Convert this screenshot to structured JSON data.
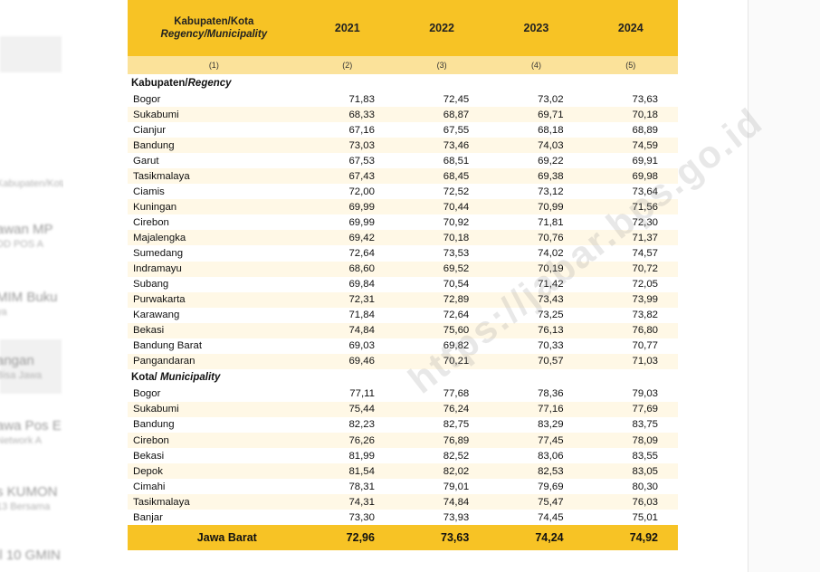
{
  "background_page": {
    "items": [
      {
        "line1": "",
        "line2": "Kabupaten/Kota"
      },
      {
        "line1": "awan MP",
        "line2": "DD POS A"
      },
      {
        "line1": "MIM Buku",
        "line2": "ya"
      },
      {
        "line1": "angan",
        "line2": "Bisa Jawa"
      },
      {
        "line1": "awa Pos E",
        "line2": "Network A"
      },
      {
        "line1": "s KUMON",
        "line2": "13 Bersama"
      },
      {
        "line1": "il 10 GMIN",
        "line2": ""
      }
    ]
  },
  "table": {
    "header": {
      "label_id": "Kabupaten/Kota",
      "label_en": "Regency/Municipality",
      "years": [
        "2021",
        "2022",
        "2023",
        "2024"
      ],
      "col_numbers": [
        "(1)",
        "(2)",
        "(3)",
        "(4)",
        "(5)"
      ]
    },
    "sections": [
      {
        "title_id": "Kabupaten/",
        "title_en": "Regency",
        "rows": [
          {
            "name": "Bogor",
            "values": [
              "71,83",
              "72,45",
              "73,02",
              "73,63"
            ]
          },
          {
            "name": "Sukabumi",
            "values": [
              "68,33",
              "68,87",
              "69,71",
              "70,18"
            ]
          },
          {
            "name": "Cianjur",
            "values": [
              "67,16",
              "67,55",
              "68,18",
              "68,89"
            ]
          },
          {
            "name": "Bandung",
            "values": [
              "73,03",
              "73,46",
              "74,03",
              "74,59"
            ]
          },
          {
            "name": "Garut",
            "values": [
              "67,53",
              "68,51",
              "69,22",
              "69,91"
            ]
          },
          {
            "name": "Tasikmalaya",
            "values": [
              "67,43",
              "68,45",
              "69,38",
              "69,98"
            ]
          },
          {
            "name": "Ciamis",
            "values": [
              "72,00",
              "72,52",
              "73,12",
              "73,64"
            ]
          },
          {
            "name": "Kuningan",
            "values": [
              "69,99",
              "70,44",
              "70,99",
              "71,56"
            ]
          },
          {
            "name": "Cirebon",
            "values": [
              "69,99",
              "70,92",
              "71,81",
              "72,30"
            ]
          },
          {
            "name": "Majalengka",
            "values": [
              "69,42",
              "70,18",
              "70,76",
              "71,37"
            ]
          },
          {
            "name": "Sumedang",
            "values": [
              "72,64",
              "73,53",
              "74,02",
              "74,57"
            ]
          },
          {
            "name": "Indramayu",
            "values": [
              "68,60",
              "69,52",
              "70,19",
              "70,72"
            ]
          },
          {
            "name": "Subang",
            "values": [
              "69,84",
              "70,54",
              "71,42",
              "72,05"
            ]
          },
          {
            "name": "Purwakarta",
            "values": [
              "72,31",
              "72,89",
              "73,43",
              "73,99"
            ]
          },
          {
            "name": "Karawang",
            "values": [
              "71,84",
              "72,64",
              "73,25",
              "73,82"
            ]
          },
          {
            "name": "Bekasi",
            "values": [
              "74,84",
              "75,60",
              "76,13",
              "76,80"
            ]
          },
          {
            "name": "Bandung Barat",
            "values": [
              "69,03",
              "69,82",
              "70,33",
              "70,77"
            ]
          },
          {
            "name": "Pangandaran",
            "values": [
              "69,46",
              "70,21",
              "70,57",
              "71,03"
            ]
          }
        ]
      },
      {
        "title_id": "Kota/ ",
        "title_en": "Municipality",
        "rows": [
          {
            "name": "Bogor",
            "values": [
              "77,11",
              "77,68",
              "78,36",
              "79,03"
            ]
          },
          {
            "name": "Sukabumi",
            "values": [
              "75,44",
              "76,24",
              "77,16",
              "77,69"
            ]
          },
          {
            "name": "Bandung",
            "values": [
              "82,23",
              "82,75",
              "83,29",
              "83,75"
            ]
          },
          {
            "name": "Cirebon",
            "values": [
              "76,26",
              "76,89",
              "77,45",
              "78,09"
            ]
          },
          {
            "name": "Bekasi",
            "values": [
              "81,99",
              "82,52",
              "83,06",
              "83,55"
            ]
          },
          {
            "name": "Depok",
            "values": [
              "81,54",
              "82,02",
              "82,53",
              "83,05"
            ]
          },
          {
            "name": "Cimahi",
            "values": [
              "78,31",
              "79,01",
              "79,69",
              "80,30"
            ]
          },
          {
            "name": "Tasikmalaya",
            "values": [
              "74,31",
              "74,84",
              "75,47",
              "76,03"
            ]
          },
          {
            "name": "Banjar",
            "values": [
              "73,30",
              "73,93",
              "74,45",
              "75,01"
            ]
          }
        ]
      }
    ],
    "total": {
      "name": "Jawa Barat",
      "values": [
        "72,96",
        "73,63",
        "74,24",
        "74,92"
      ]
    }
  },
  "watermark": "https://jabar.bps.go.id",
  "colors": {
    "header_yellow": "#f7c325",
    "subheader_yellow": "#fbe29a",
    "row_stripe": "#fff8e6"
  }
}
